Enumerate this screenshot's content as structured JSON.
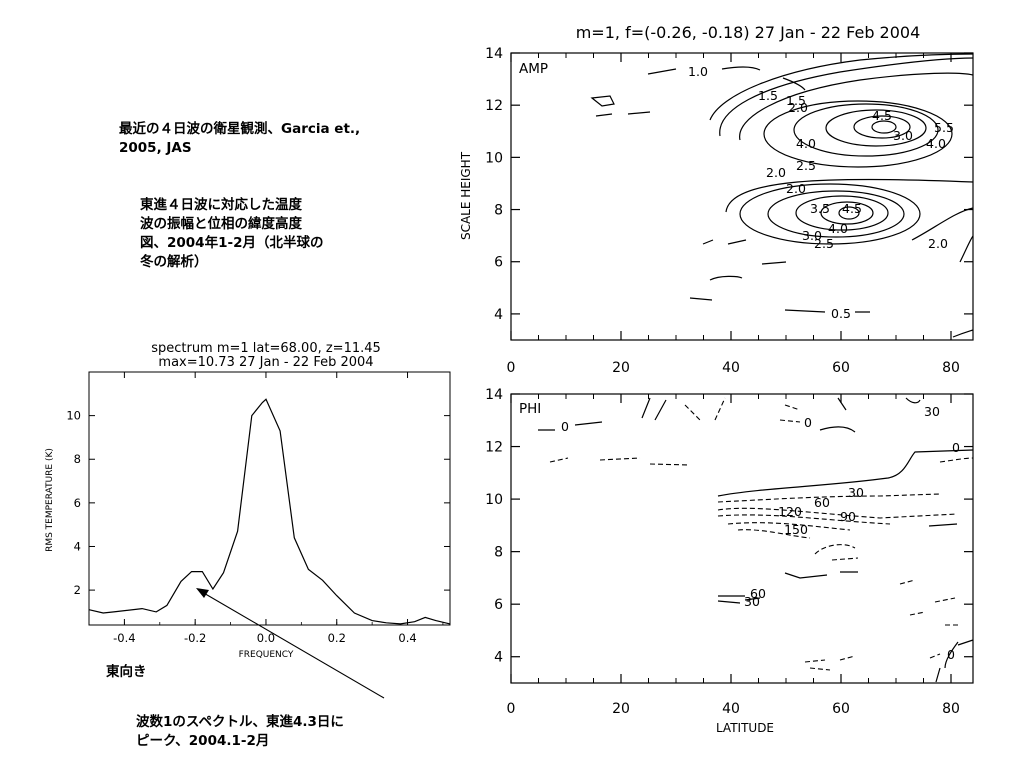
{
  "notes": {
    "citation": [
      "最近の４日波の衛星観測、Garcia et.,",
      "2005, JAS"
    ],
    "figure_desc": [
      "東進４日波に対応した温度",
      "波の振幅と位相の緯度高度",
      "図、2004年1-2月（北半球の",
      "冬の解析）"
    ],
    "east": "東向き",
    "spectrum_desc": [
      "波数1のスペクトル、東進4.3日に",
      "ピーク、2004.1-2月"
    ]
  },
  "chart_data": [
    {
      "id": "spectrum",
      "type": "line",
      "title_lines": [
        "spectrum m=1  lat=68.00, z=11.45",
        "max=10.73  27 Jan - 22 Feb 2004"
      ],
      "xlabel": "FREQUENCY",
      "ylabel": "RMS TEMPERATURE (K)",
      "xlim": [
        -0.5,
        0.52
      ],
      "ylim": [
        0.4,
        12
      ],
      "xticks": [
        -0.4,
        -0.2,
        0.0,
        0.2,
        0.4
      ],
      "xtick_labels": [
        "-0.4",
        "-0.2",
        "0.0",
        "0.2",
        "0.4"
      ],
      "yticks": [
        2,
        4,
        6,
        8,
        10
      ],
      "ytick_labels": [
        "2",
        "4",
        "6",
        "8",
        "10"
      ],
      "x": [
        -0.5,
        -0.46,
        -0.43,
        -0.35,
        -0.31,
        -0.28,
        -0.24,
        -0.21,
        -0.18,
        -0.15,
        -0.12,
        -0.08,
        -0.04,
        -0.01,
        0.0,
        0.04,
        0.08,
        0.12,
        0.16,
        0.2,
        0.25,
        0.3,
        0.34,
        0.38,
        0.42,
        0.45,
        0.48,
        0.52
      ],
      "y": [
        1.1,
        0.95,
        1.0,
        1.15,
        1.0,
        1.3,
        2.4,
        2.85,
        2.85,
        2.05,
        2.8,
        4.7,
        10.0,
        10.6,
        10.75,
        9.3,
        4.4,
        2.95,
        2.45,
        1.75,
        0.95,
        0.6,
        0.5,
        0.45,
        0.55,
        0.75,
        0.6,
        0.45
      ]
    },
    {
      "id": "amp",
      "type": "contour",
      "title": "m=1, f=(-0.26, -0.18)  27 Jan - 22 Feb 2004",
      "panel_label": "AMP",
      "ylabel": "SCALE HEIGHT",
      "xlim": [
        0,
        84
      ],
      "ylim": [
        3,
        14
      ],
      "xticks": [
        0,
        20,
        40,
        60,
        80
      ],
      "xtick_labels": [
        "0",
        "20",
        "40",
        "60",
        "80"
      ],
      "yticks": [
        4,
        6,
        8,
        10,
        12,
        14
      ],
      "ytick_labels": [
        "4",
        "6",
        "8",
        "10",
        "12",
        "14"
      ],
      "contour_labels": [
        "1.0",
        "1.5",
        "1.5",
        "2.0",
        "4.0",
        "4.5",
        "3.0",
        "5.5",
        "4.0",
        "2.5",
        "2.0",
        "2.0",
        "3.5",
        "4.5",
        "4.0",
        "3.0",
        "2.5",
        "2.0",
        "0.5"
      ],
      "maxima": [
        {
          "lat": 68,
          "z": 11.0,
          "level": 4.5
        },
        {
          "lat": 66,
          "z": 7.6,
          "level": 4.5
        }
      ]
    },
    {
      "id": "phi",
      "type": "contour",
      "panel_label": "PHI",
      "xlabel": "LATITUDE",
      "ylabel": "SCALE HEIGHT",
      "xlim": [
        0,
        84
      ],
      "ylim": [
        3,
        14
      ],
      "xticks": [
        0,
        20,
        40,
        60,
        80
      ],
      "xtick_labels": [
        "0",
        "20",
        "40",
        "60",
        "80"
      ],
      "yticks": [
        4,
        6,
        8,
        10,
        12,
        14
      ],
      "ytick_labels": [
        "4",
        "6",
        "8",
        "10",
        "12",
        "14"
      ],
      "contour_labels": [
        "0",
        "0",
        "30",
        "0",
        "60",
        "30",
        "120",
        "90",
        "150",
        "60",
        "30",
        "0"
      ]
    }
  ]
}
